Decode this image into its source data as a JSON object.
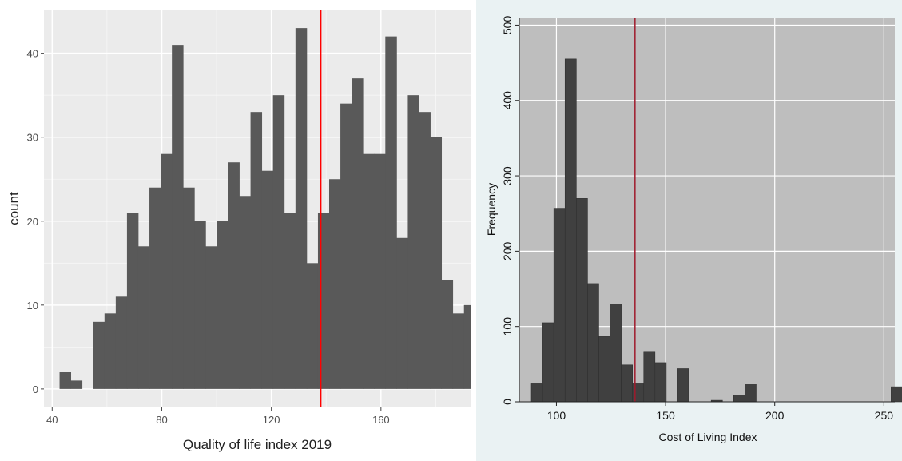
{
  "chart_data": [
    {
      "type": "bar",
      "style": "ggplot histogram",
      "xlabel": "Quality of life index 2019",
      "ylabel": "count",
      "xlim": [
        37,
        193
      ],
      "ylim": [
        -2.2,
        45.2
      ],
      "xticks": [
        "40",
        "80",
        "120",
        "160"
      ],
      "xtick_values": [
        40,
        80,
        120,
        160
      ],
      "yticks": [
        "0",
        "10",
        "20",
        "30",
        "40"
      ],
      "ytick_values": [
        0,
        10,
        20,
        30,
        40
      ],
      "grid": true,
      "bin_start": 42.7,
      "bin_width": 4.1,
      "values": [
        2,
        1,
        0,
        8,
        9,
        11,
        21,
        17,
        24,
        28,
        41,
        24,
        20,
        17,
        20,
        27,
        23,
        33,
        26,
        35,
        21,
        43,
        15,
        21,
        25,
        34,
        37,
        28,
        28,
        42,
        18,
        35,
        33,
        30,
        13,
        9,
        10
      ],
      "reference_line": 138,
      "colors": {
        "bar": "#595959",
        "panel": "#ebebeb",
        "grid": "#ffffff",
        "reference": "#ff0000"
      }
    },
    {
      "type": "bar",
      "style": "stata histogram",
      "xlabel": "Cost of Living Index",
      "ylabel": "Frequency",
      "xlim": [
        83,
        255
      ],
      "ylim": [
        0,
        510
      ],
      "xticks": [
        "100",
        "150",
        "200",
        "250"
      ],
      "xtick_values": [
        100,
        150,
        200,
        250
      ],
      "yticks": [
        "0",
        "100",
        "200",
        "300",
        "400",
        "500"
      ],
      "ytick_values": [
        0,
        100,
        200,
        300,
        400,
        500
      ],
      "grid": true,
      "bin_start": 88.5,
      "bin_width": 5.15,
      "values": [
        25,
        105,
        257,
        455,
        270,
        157,
        87,
        130,
        49,
        25,
        67,
        52,
        0,
        44,
        0,
        0,
        2,
        0,
        9,
        24,
        0,
        0,
        0,
        0,
        0,
        0,
        0,
        0,
        0,
        0,
        0,
        0,
        20
      ],
      "reference_line": 136,
      "colors": {
        "bar": "#404040",
        "panel": "#bebebe",
        "outer": "#eaf2f3",
        "grid": "#ffffff",
        "reference": "#a01a2c"
      }
    }
  ]
}
